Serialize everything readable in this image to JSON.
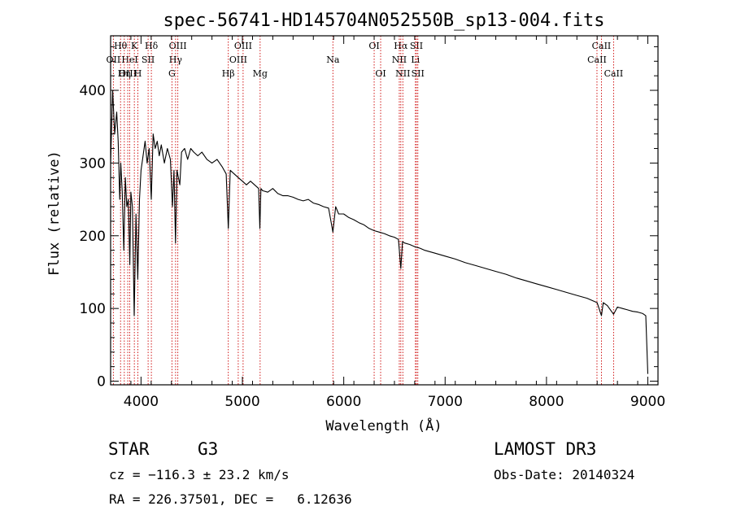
{
  "chart_data": {
    "type": "line",
    "title": "spec-56741-HD145704N052550B_sp13-004.fits",
    "xlabel": "Wavelength (Å)",
    "ylabel": "Flux (relative)",
    "xlim": [
      3700,
      9100
    ],
    "ylim": [
      -5,
      475
    ],
    "x_ticks": [
      4000,
      5000,
      6000,
      7000,
      8000,
      9000
    ],
    "y_ticks": [
      0,
      100,
      200,
      300,
      400
    ],
    "series": [
      {
        "name": "flux",
        "color": "#000000",
        "x": [
          3700,
          3720,
          3740,
          3760,
          3775,
          3790,
          3800,
          3815,
          3830,
          3845,
          3860,
          3875,
          3889,
          3900,
          3915,
          3933,
          3950,
          3968,
          3985,
          4000,
          4020,
          4040,
          4060,
          4080,
          4101,
          4120,
          4140,
          4160,
          4180,
          4200,
          4230,
          4260,
          4290,
          4310,
          4325,
          4340,
          4355,
          4383,
          4400,
          4430,
          4460,
          4490,
          4520,
          4560,
          4600,
          4650,
          4700,
          4750,
          4800,
          4840,
          4861,
          4880,
          4920,
          4960,
          5000,
          5040,
          5080,
          5120,
          5160,
          5172,
          5183,
          5200,
          5250,
          5300,
          5350,
          5400,
          5450,
          5500,
          5550,
          5600,
          5650,
          5700,
          5750,
          5800,
          5850,
          5893,
          5920,
          5950,
          6000,
          6050,
          6100,
          6150,
          6200,
          6250,
          6300,
          6350,
          6400,
          6450,
          6500,
          6540,
          6563,
          6580,
          6600,
          6650,
          6700,
          6750,
          6800,
          6900,
          7000,
          7100,
          7200,
          7300,
          7400,
          7500,
          7600,
          7700,
          7800,
          7900,
          8000,
          8100,
          8200,
          8300,
          8400,
          8500,
          8542,
          8560,
          8600,
          8662,
          8700,
          8750,
          8800,
          8850,
          8900,
          8950,
          8980,
          9000
        ],
        "y": [
          300,
          400,
          340,
          370,
          330,
          250,
          300,
          260,
          180,
          280,
          240,
          250,
          160,
          260,
          240,
          90,
          230,
          140,
          250,
          290,
          310,
          330,
          300,
          320,
          250,
          340,
          320,
          330,
          310,
          325,
          300,
          320,
          305,
          240,
          290,
          190,
          290,
          270,
          315,
          320,
          305,
          320,
          315,
          310,
          315,
          305,
          300,
          305,
          295,
          285,
          210,
          290,
          285,
          280,
          275,
          270,
          275,
          270,
          265,
          210,
          265,
          262,
          260,
          265,
          258,
          255,
          255,
          253,
          250,
          248,
          250,
          245,
          243,
          240,
          238,
          205,
          240,
          230,
          230,
          225,
          222,
          218,
          215,
          210,
          207,
          205,
          203,
          200,
          198,
          195,
          155,
          192,
          190,
          188,
          185,
          183,
          180,
          176,
          172,
          168,
          163,
          159,
          155,
          151,
          147,
          142,
          138,
          134,
          130,
          126,
          122,
          118,
          114,
          108,
          90,
          108,
          104,
          92,
          102,
          100,
          98,
          96,
          95,
          93,
          90,
          10
        ]
      }
    ],
    "spectral_lines": [
      {
        "label": "Hθ",
        "wave": 3798,
        "row": 0
      },
      {
        "label": "K",
        "wave": 3934,
        "row": 0
      },
      {
        "label": "Hδ",
        "wave": 4102,
        "row": 0
      },
      {
        "label": "OIII",
        "wave": 4363,
        "row": 0
      },
      {
        "label": "OIII",
        "wave": 5007,
        "row": 0
      },
      {
        "label": "OI",
        "wave": 6300,
        "row": 0
      },
      {
        "label": "Hα",
        "wave": 6563,
        "row": 0
      },
      {
        "label": "SII",
        "wave": 6717,
        "row": 0
      },
      {
        "label": "CaII",
        "wave": 8542,
        "row": 0
      },
      {
        "label": "OII",
        "wave": 3727,
        "row": 1
      },
      {
        "label": "HeI",
        "wave": 3889,
        "row": 1
      },
      {
        "label": "SII",
        "wave": 4070,
        "row": 1
      },
      {
        "label": "Hγ",
        "wave": 4341,
        "row": 1
      },
      {
        "label": "OIII",
        "wave": 4959,
        "row": 1
      },
      {
        "label": "Na",
        "wave": 5893,
        "row": 1
      },
      {
        "label": "NII",
        "wave": 6548,
        "row": 1
      },
      {
        "label": "Li",
        "wave": 6707,
        "row": 1
      },
      {
        "label": "CaII",
        "wave": 8498,
        "row": 1
      },
      {
        "label": "OIII",
        "wave": 3869,
        "row": 2
      },
      {
        "label": "Hη",
        "wave": 3835,
        "row": 2
      },
      {
        "label": "H",
        "wave": 3969,
        "row": 2
      },
      {
        "label": "G",
        "wave": 4305,
        "row": 2
      },
      {
        "label": "Hβ",
        "wave": 4861,
        "row": 2
      },
      {
        "label": "Mg",
        "wave": 5175,
        "row": 2
      },
      {
        "label": "OI",
        "wave": 6364,
        "row": 2
      },
      {
        "label": "NII",
        "wave": 6583,
        "row": 2
      },
      {
        "label": "SII",
        "wave": 6731,
        "row": 2
      },
      {
        "label": "CaII",
        "wave": 8662,
        "row": 2
      }
    ],
    "line_color": "#cc0000"
  },
  "info": {
    "object_class": "STAR",
    "subclass": "G3",
    "survey": "LAMOST DR3",
    "redshift": "cz = −116.3 ± 23.2 km/s",
    "obs_date": "Obs-Date: 20140324",
    "coords": "RA = 226.37501, DEC =   6.12636"
  }
}
